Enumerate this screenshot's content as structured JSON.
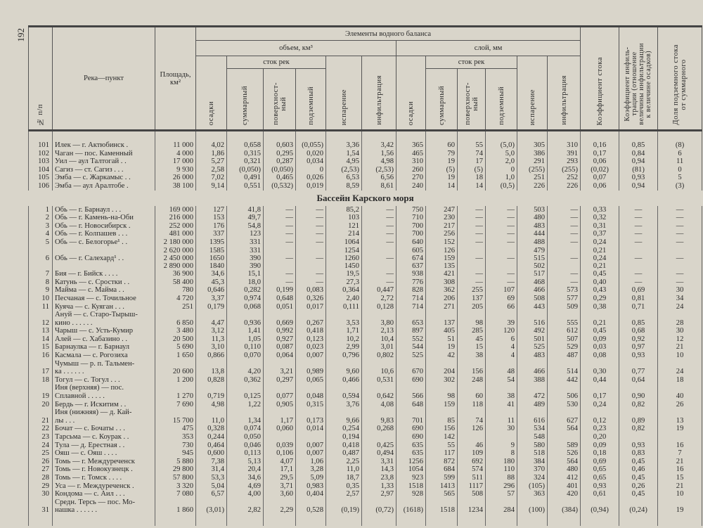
{
  "page_number": "192",
  "header": {
    "no": "№ п/п",
    "river": "Река—пункт",
    "area": "Площадь,\nкм²",
    "elements": "Элементы водного баланса",
    "volume": "объем, км³",
    "layer": "слой, мм",
    "runoff": "сток рек",
    "precip": "осадки",
    "total": "суммарный",
    "surface": "поверхност-\nный",
    "underground": "подземный",
    "evaporation": "испарение",
    "infiltration": "инфильтрация",
    "runoff_coef": "Коэффициент стока",
    "infil_coef": "Коэффициент инфиль-\nтрации (отношение\nвеличины инфильтрации\nк величине осадков)",
    "underground_share": "Доля подземного стока\nот суммарного"
  },
  "rows_top": [
    [
      "101",
      "Илек — г. Актюбинск .",
      "11 000",
      "4,02",
      "0,658",
      "0,603",
      "(0,055)",
      "3,36",
      "3,42",
      "365",
      "60",
      "55",
      "(5,0)",
      "305",
      "310",
      "0,16",
      "0,85",
      "(8)"
    ],
    [
      "102",
      "Чаган — пос. Каменный",
      "4 000",
      "1,86",
      "0,315",
      "0,295",
      "0,020",
      "1,54",
      "1,56",
      "465",
      "79",
      "74",
      "5,0",
      "386",
      "391",
      "0,17",
      "0,84",
      "6"
    ],
    [
      "103",
      "Уил — аул Талтогай . .",
      "17 000",
      "5,27",
      "0,321",
      "0,287",
      "0,034",
      "4,95",
      "4,98",
      "310",
      "19",
      "17",
      "2,0",
      "291",
      "293",
      "0,06",
      "0,94",
      "11"
    ],
    [
      "104",
      "Сагиз — ст. Сагиз . . .",
      "9 930",
      "2,58",
      "(0,050)",
      "(0,050)",
      "0",
      "(2,53)",
      "(2,53)",
      "260",
      "(5)",
      "(5)",
      "0",
      "(255)",
      "(255)",
      "(0,02)",
      "(81)",
      "0"
    ],
    [
      "105",
      "Эмба — с. Жаркамыс . .",
      "26 000",
      "7,02",
      "0,491",
      "0,465",
      "0,026",
      "6,53",
      "6,56",
      "270",
      "19",
      "18",
      "1,0",
      "251",
      "252",
      "0,07",
      "0,93",
      "5"
    ],
    [
      "106",
      "Эмба — аул Аралтобе .",
      "38 100",
      "9,14",
      "0,551",
      "(0,532)",
      "0,019",
      "8,59",
      "8,61",
      "240",
      "14",
      "14",
      "(0,5)",
      "226",
      "226",
      "0,06",
      "0,94",
      "(3)"
    ]
  ],
  "section_title": "Бассейн Карского моря",
  "rows_kara": [
    [
      "1",
      "Обь — г. Барнаул . . .",
      "169 000",
      "127",
      "41,8",
      "—",
      "—",
      "85,2",
      "—",
      "750",
      "247",
      "—",
      "—",
      "503",
      "—",
      "0,33",
      "—",
      "—"
    ],
    [
      "2",
      "Обь — г. Камень-на-Оби",
      "216 000",
      "153",
      "49,7",
      "—",
      "—",
      "103",
      "—",
      "710",
      "230",
      "—",
      "—",
      "480",
      "—",
      "0,32",
      "—",
      "—"
    ],
    [
      "3",
      "Обь — г. Новосибирск .",
      "252 000",
      "176",
      "54,8",
      "—",
      "—",
      "121",
      "—",
      "700",
      "217",
      "—",
      "—",
      "483",
      "—",
      "0,31",
      "—",
      "—"
    ],
    [
      "4",
      "Обь — г. Колпашев . . .",
      "481 000",
      "337",
      "123",
      "—",
      "—",
      "214",
      "—",
      "700",
      "256",
      "—",
      "—",
      "444",
      "—",
      "0,37",
      "—",
      "—"
    ],
    [
      "5",
      "Обь — с. Белогорье¹ . .",
      "2 180 000",
      "1395",
      "331",
      "—",
      "—",
      "1064",
      "—",
      "640",
      "152",
      "—",
      "—",
      "488",
      "—",
      "0,24",
      "—",
      "—"
    ],
    [
      "",
      "",
      "2 620 000",
      "1585",
      "331",
      "",
      "",
      "1254",
      "",
      "605",
      "126",
      "",
      "",
      "479",
      "",
      "0,21",
      "",
      ""
    ],
    [
      "6",
      "Обь — г. Салехард¹ . .",
      "2 450 000",
      "1650",
      "390",
      "—",
      "—",
      "1260",
      "—",
      "674",
      "159",
      "—",
      "—",
      "515",
      "—",
      "0,24",
      "—",
      "—"
    ],
    [
      "",
      "",
      "2 890 000",
      "1840",
      "390",
      "",
      "",
      "1450",
      "",
      "637",
      "135",
      "",
      "",
      "502",
      "",
      "0,21",
      "",
      ""
    ],
    [
      "7",
      "Бия — г. Бийск . . . .",
      "36 900",
      "34,6",
      "15,1",
      "—",
      "—",
      "19,5",
      "—",
      "938",
      "421",
      "—",
      "—",
      "517",
      "—",
      "0,45",
      "—",
      "—"
    ],
    [
      "8",
      "Катунь — с. Сростки . .",
      "58 400",
      "45,3",
      "18,0",
      "—",
      "—",
      "27,3",
      "—",
      "776",
      "308",
      "—",
      "—",
      "468",
      "—",
      "0,40",
      "—",
      "—"
    ],
    [
      "9",
      "Майма — с. Майма . .",
      "780",
      "0,646",
      "0,282",
      "0,199",
      "0,083",
      "0,364",
      "0,447",
      "828",
      "362",
      "255",
      "107",
      "466",
      "573",
      "0,43",
      "0,69",
      "30"
    ],
    [
      "10",
      "Песчаная — с. Точильное",
      "4 720",
      "3,37",
      "0,974",
      "0,648",
      "0,326",
      "2,40",
      "2,72",
      "714",
      "206",
      "137",
      "69",
      "508",
      "577",
      "0,29",
      "0,81",
      "34"
    ],
    [
      "11",
      "Куяча — с. Куяган . . .",
      "251",
      "0,179",
      "0,068",
      "0,051",
      "0,017",
      "0,111",
      "0,128",
      "714",
      "271",
      "205",
      "66",
      "443",
      "509",
      "0,38",
      "0,71",
      "24"
    ],
    [
      "12",
      "Ануй — с. Старо-Тырыш-\nкино . . . . . .",
      "6 850",
      "4,47",
      "0,936",
      "0,669",
      "0,267",
      "3,53",
      "3,80",
      "653",
      "137",
      "98",
      "39",
      "516",
      "555",
      "0,21",
      "0,85",
      "28"
    ],
    [
      "13",
      "Чарыш — с. Усть-Кумир",
      "3 480",
      "3,12",
      "1,41",
      "0,992",
      "0,418",
      "1,71",
      "2,13",
      "897",
      "405",
      "285",
      "120",
      "492",
      "612",
      "0,45",
      "0,68",
      "30"
    ],
    [
      "14",
      "Алей — с. Хабазино . .",
      "20 500",
      "11,3",
      "1,05",
      "0,927",
      "0,123",
      "10,2",
      "10,4",
      "552",
      "51",
      "45",
      "6",
      "501",
      "507",
      "0,09",
      "0,92",
      "12"
    ],
    [
      "15",
      "Барнаулка — г. Барнаул",
      "5 690",
      "3,10",
      "0,110",
      "0,087",
      "0,023",
      "2,99",
      "3,01",
      "544",
      "19",
      "15",
      "4",
      "525",
      "529",
      "0,03",
      "0,97",
      "21"
    ],
    [
      "16",
      "Касмала — с. Рогозиха",
      "1 650",
      "0,866",
      "0,070",
      "0,064",
      "0,007",
      "0,796",
      "0,802",
      "525",
      "42",
      "38",
      "4",
      "483",
      "487",
      "0,08",
      "0,93",
      "10"
    ],
    [
      "17",
      "Чумыш — р. п. Тальмен-\nка . . . . . .",
      "20 600",
      "13,8",
      "4,20",
      "3,21",
      "0,989",
      "9,60",
      "10,6",
      "670",
      "204",
      "156",
      "48",
      "466",
      "514",
      "0,30",
      "0,77",
      "24"
    ],
    [
      "18",
      "Тогул — с. Тогул . . .",
      "1 200",
      "0,828",
      "0,362",
      "0,297",
      "0,065",
      "0,466",
      "0,531",
      "690",
      "302",
      "248",
      "54",
      "388",
      "442",
      "0,44",
      "0,64",
      "18"
    ],
    [
      "19",
      "Иня (верхняя) — пос.\n   Сплавной . . . . .",
      "1 270",
      "0,719",
      "0,125",
      "0,077",
      "0,048",
      "0,594",
      "0,642",
      "566",
      "98",
      "60",
      "38",
      "472",
      "506",
      "0,17",
      "0,90",
      "40"
    ],
    [
      "20",
      "Бердь — г. Искитим . .",
      "7 690",
      "4,98",
      "1,22",
      "0,905",
      "0,315",
      "3,76",
      "4,08",
      "648",
      "159",
      "118",
      "41",
      "489",
      "530",
      "0,24",
      "0,82",
      "26"
    ],
    [
      "21",
      "Иня (нижняя) — д. Кай-\nлы . . .",
      "15 700",
      "11,0",
      "1,34",
      "1,17",
      "0,173",
      "9,66",
      "9,83",
      "701",
      "85",
      "74",
      "11",
      "616",
      "627",
      "0,12",
      "0,89",
      "13"
    ],
    [
      "22",
      "Бочат — с. Бочаты . . .",
      "475",
      "0,328",
      "0,074",
      "0,060",
      "0,014",
      "0,254",
      "0,268",
      "690",
      "156",
      "126",
      "30",
      "534",
      "564",
      "0,23",
      "0,82",
      "19"
    ],
    [
      "23",
      "Тарсьма — с. Коурак . .",
      "353",
      "0,244",
      "0,050",
      "",
      "",
      "0,194",
      "",
      "690",
      "142",
      "",
      "",
      "548",
      "",
      "0,20",
      "",
      ""
    ],
    [
      "24",
      "Тула — д. Ерестная . .",
      "730",
      "0,464",
      "0,046",
      "0,039",
      "0,007",
      "0,418",
      "0,425",
      "635",
      "55",
      "46",
      "9",
      "580",
      "589",
      "0,09",
      "0,93",
      "16"
    ],
    [
      "25",
      "Ояш — с. Ояш . . . .",
      "945",
      "0,600",
      "0,113",
      "0,106",
      "0,007",
      "0,487",
      "0,494",
      "635",
      "117",
      "109",
      "8",
      "518",
      "526",
      "0,18",
      "0,83",
      "7"
    ],
    [
      "26",
      "Томь — г. Междуреченск",
      "5 880",
      "7,38",
      "5,13",
      "4,07",
      "1,06",
      "2,25",
      "3,31",
      "1256",
      "872",
      "692",
      "180",
      "384",
      "564",
      "0,69",
      "0,45",
      "21"
    ],
    [
      "27",
      "Томь — г. Новокузнецк .",
      "29 800",
      "31,4",
      "20,4",
      "17,1",
      "3,28",
      "11,0",
      "14,3",
      "1054",
      "684",
      "574",
      "110",
      "370",
      "480",
      "0,65",
      "0,46",
      "16"
    ],
    [
      "28",
      "Томь — г. Томск . . . .",
      "57 800",
      "53,3",
      "34,6",
      "29,5",
      "5,09",
      "18,7",
      "23,8",
      "923",
      "599",
      "511",
      "88",
      "324",
      "412",
      "0,65",
      "0,45",
      "15"
    ],
    [
      "29",
      "Уса — г. Междуреченск .",
      "3 320",
      "5,04",
      "4,69",
      "3,71",
      "0,983",
      "0,35",
      "1,33",
      "1518",
      "1413",
      "1117",
      "296",
      "(105)",
      "401",
      "0,93",
      "0,26",
      "21"
    ],
    [
      "30",
      "Кондома — с. Аил . . .",
      "7 080",
      "6,57",
      "4,00",
      "3,60",
      "0,404",
      "2,57",
      "2,97",
      "928",
      "565",
      "508",
      "57",
      "363",
      "420",
      "0,61",
      "0,45",
      "10"
    ],
    [
      "31",
      "Средн. Терсь — пос. Мо-\n   нашка . . . . . .",
      "1 860",
      "(3,01)",
      "2,82",
      "2,29",
      "0,528",
      "(0,19)",
      "(0,72)",
      "(1618)",
      "1518",
      "1234",
      "284",
      "(100)",
      "(384)",
      "(0,94)",
      "(0,24)",
      "19"
    ]
  ]
}
